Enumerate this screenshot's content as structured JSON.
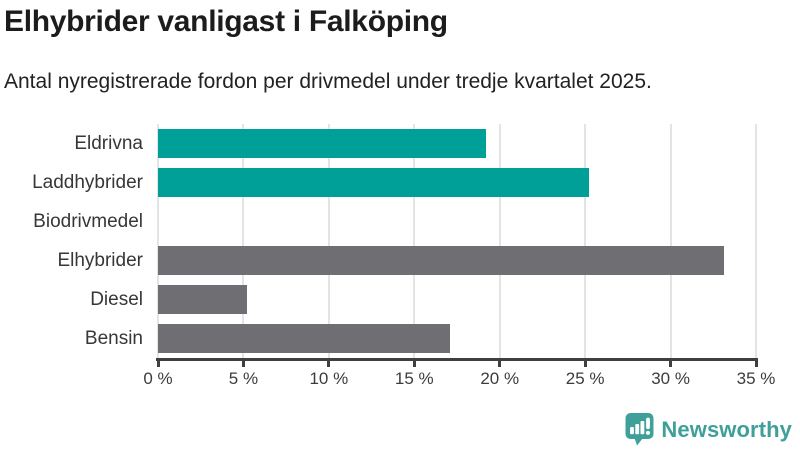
{
  "header": {
    "title": "Elhybrider vanligast i Falköping",
    "subtitle": "Antal nyregistrerade fordon per drivmedel under tredje kvartalet 2025."
  },
  "chart_data": {
    "type": "bar",
    "orientation": "horizontal",
    "title": "Elhybrider vanligast i Falköping",
    "subtitle": "Antal nyregistrerade fordon per drivmedel under tredje kvartalet 2025.",
    "unit": "%",
    "categories": [
      "Eldrivna",
      "Laddhybrider",
      "Biodrivmedel",
      "Elhybrider",
      "Diesel",
      "Bensin"
    ],
    "values": [
      19.2,
      25.2,
      0,
      33.1,
      5.2,
      17.1
    ],
    "bar_colors": [
      "#00a099",
      "#00a099",
      "#00a099",
      "#6e6e73",
      "#6e6e73",
      "#6e6e73"
    ],
    "xlim": [
      0,
      35
    ],
    "x_ticks": [
      0,
      5,
      10,
      15,
      20,
      25,
      30,
      35
    ],
    "x_tick_labels": [
      "0 %",
      "5 %",
      "10 %",
      "15 %",
      "20 %",
      "25 %",
      "30 %",
      "35 %"
    ],
    "grid": true,
    "legend": false
  },
  "colors": {
    "highlight_bar": "#00a099",
    "default_bar": "#6e6e73",
    "gridline": "#e4e4e4",
    "axis": "#3f3f3f",
    "brand": "#3fa09a"
  },
  "footer": {
    "logo_text": "Newsworthy"
  }
}
